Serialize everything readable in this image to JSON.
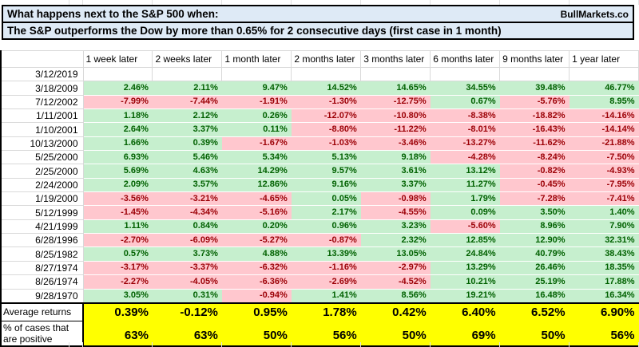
{
  "title": {
    "line1": "What happens next to the S&P 500 when:",
    "line2": "The S&P outperforms the Dow by more than 0.65% for 2 consecutive days (first case in 1 month)",
    "brand": "BullMarkets.co"
  },
  "columns": [
    "1 week later",
    "2 weeks later",
    "1 month later",
    "2 months later",
    "3 months later",
    "6 months later",
    "9 months later",
    "1 year later"
  ],
  "rows": [
    {
      "date": "3/12/2019",
      "values": [
        "",
        "",
        "",
        "",
        "",
        "",
        "",
        ""
      ]
    },
    {
      "date": "3/18/2009",
      "values": [
        "2.46%",
        "2.11%",
        "9.47%",
        "14.52%",
        "14.65%",
        "34.55%",
        "39.48%",
        "46.77%"
      ]
    },
    {
      "date": "7/12/2002",
      "values": [
        "-7.99%",
        "-7.44%",
        "-1.91%",
        "-1.30%",
        "-12.75%",
        "0.67%",
        "-5.76%",
        "8.95%"
      ]
    },
    {
      "date": "1/11/2001",
      "values": [
        "1.18%",
        "2.12%",
        "0.26%",
        "-12.07%",
        "-10.80%",
        "-8.38%",
        "-18.82%",
        "-14.16%"
      ]
    },
    {
      "date": "1/10/2001",
      "values": [
        "2.64%",
        "3.37%",
        "0.11%",
        "-8.80%",
        "-11.22%",
        "-8.01%",
        "-16.43%",
        "-14.14%"
      ]
    },
    {
      "date": "10/13/2000",
      "values": [
        "1.66%",
        "0.39%",
        "-1.67%",
        "-1.03%",
        "-3.46%",
        "-13.27%",
        "-11.62%",
        "-21.88%"
      ]
    },
    {
      "date": "5/25/2000",
      "values": [
        "6.93%",
        "5.46%",
        "5.34%",
        "5.13%",
        "9.18%",
        "-4.28%",
        "-8.24%",
        "-7.50%"
      ]
    },
    {
      "date": "2/25/2000",
      "values": [
        "5.69%",
        "4.63%",
        "14.29%",
        "9.57%",
        "3.61%",
        "13.12%",
        "-0.82%",
        "-4.93%"
      ]
    },
    {
      "date": "2/24/2000",
      "values": [
        "2.09%",
        "3.57%",
        "12.86%",
        "9.16%",
        "3.37%",
        "11.27%",
        "-0.45%",
        "-7.95%"
      ]
    },
    {
      "date": "1/19/2000",
      "values": [
        "-3.56%",
        "-3.21%",
        "-4.65%",
        "0.05%",
        "-0.98%",
        "1.79%",
        "-7.28%",
        "-7.41%"
      ]
    },
    {
      "date": "5/12/1999",
      "values": [
        "-1.45%",
        "-4.34%",
        "-5.16%",
        "2.17%",
        "-4.55%",
        "0.09%",
        "3.50%",
        "1.40%"
      ]
    },
    {
      "date": "4/21/1999",
      "values": [
        "1.11%",
        "0.84%",
        "0.20%",
        "0.96%",
        "3.23%",
        "-5.60%",
        "8.96%",
        "7.90%"
      ]
    },
    {
      "date": "6/28/1996",
      "values": [
        "-2.70%",
        "-6.09%",
        "-5.27%",
        "-0.87%",
        "2.32%",
        "12.85%",
        "12.90%",
        "32.31%"
      ]
    },
    {
      "date": "8/25/1982",
      "values": [
        "0.57%",
        "3.73%",
        "4.88%",
        "13.39%",
        "13.05%",
        "24.84%",
        "40.79%",
        "38.43%"
      ]
    },
    {
      "date": "8/27/1974",
      "values": [
        "-3.17%",
        "-3.37%",
        "-6.32%",
        "-1.16%",
        "-2.97%",
        "13.29%",
        "26.46%",
        "18.35%"
      ]
    },
    {
      "date": "8/26/1974",
      "values": [
        "-2.27%",
        "-4.05%",
        "-6.36%",
        "-2.69%",
        "-4.52%",
        "10.21%",
        "25.19%",
        "17.88%"
      ]
    },
    {
      "date": "9/28/1970",
      "values": [
        "3.05%",
        "0.31%",
        "-0.94%",
        "1.41%",
        "8.56%",
        "19.21%",
        "16.48%",
        "16.34%"
      ]
    }
  ],
  "summary": {
    "average": {
      "label": "Average returns",
      "values": [
        "0.39%",
        "-0.12%",
        "0.95%",
        "1.78%",
        "0.42%",
        "6.40%",
        "6.52%",
        "6.90%"
      ]
    },
    "pct_positive": {
      "label_line1": "% of cases that",
      "label_line2": "are positive",
      "values": [
        "63%",
        "63%",
        "50%",
        "56%",
        "50%",
        "69%",
        "50%",
        "56%"
      ]
    }
  },
  "colors": {
    "title_bg": "#DEEAF6",
    "positive_bg": "#C6EFCE",
    "positive_text": "#006100",
    "negative_bg": "#FFC7CE",
    "negative_text": "#9C0006",
    "summary_bg": "#FFFF00",
    "gridline": "#D9D9D9"
  }
}
